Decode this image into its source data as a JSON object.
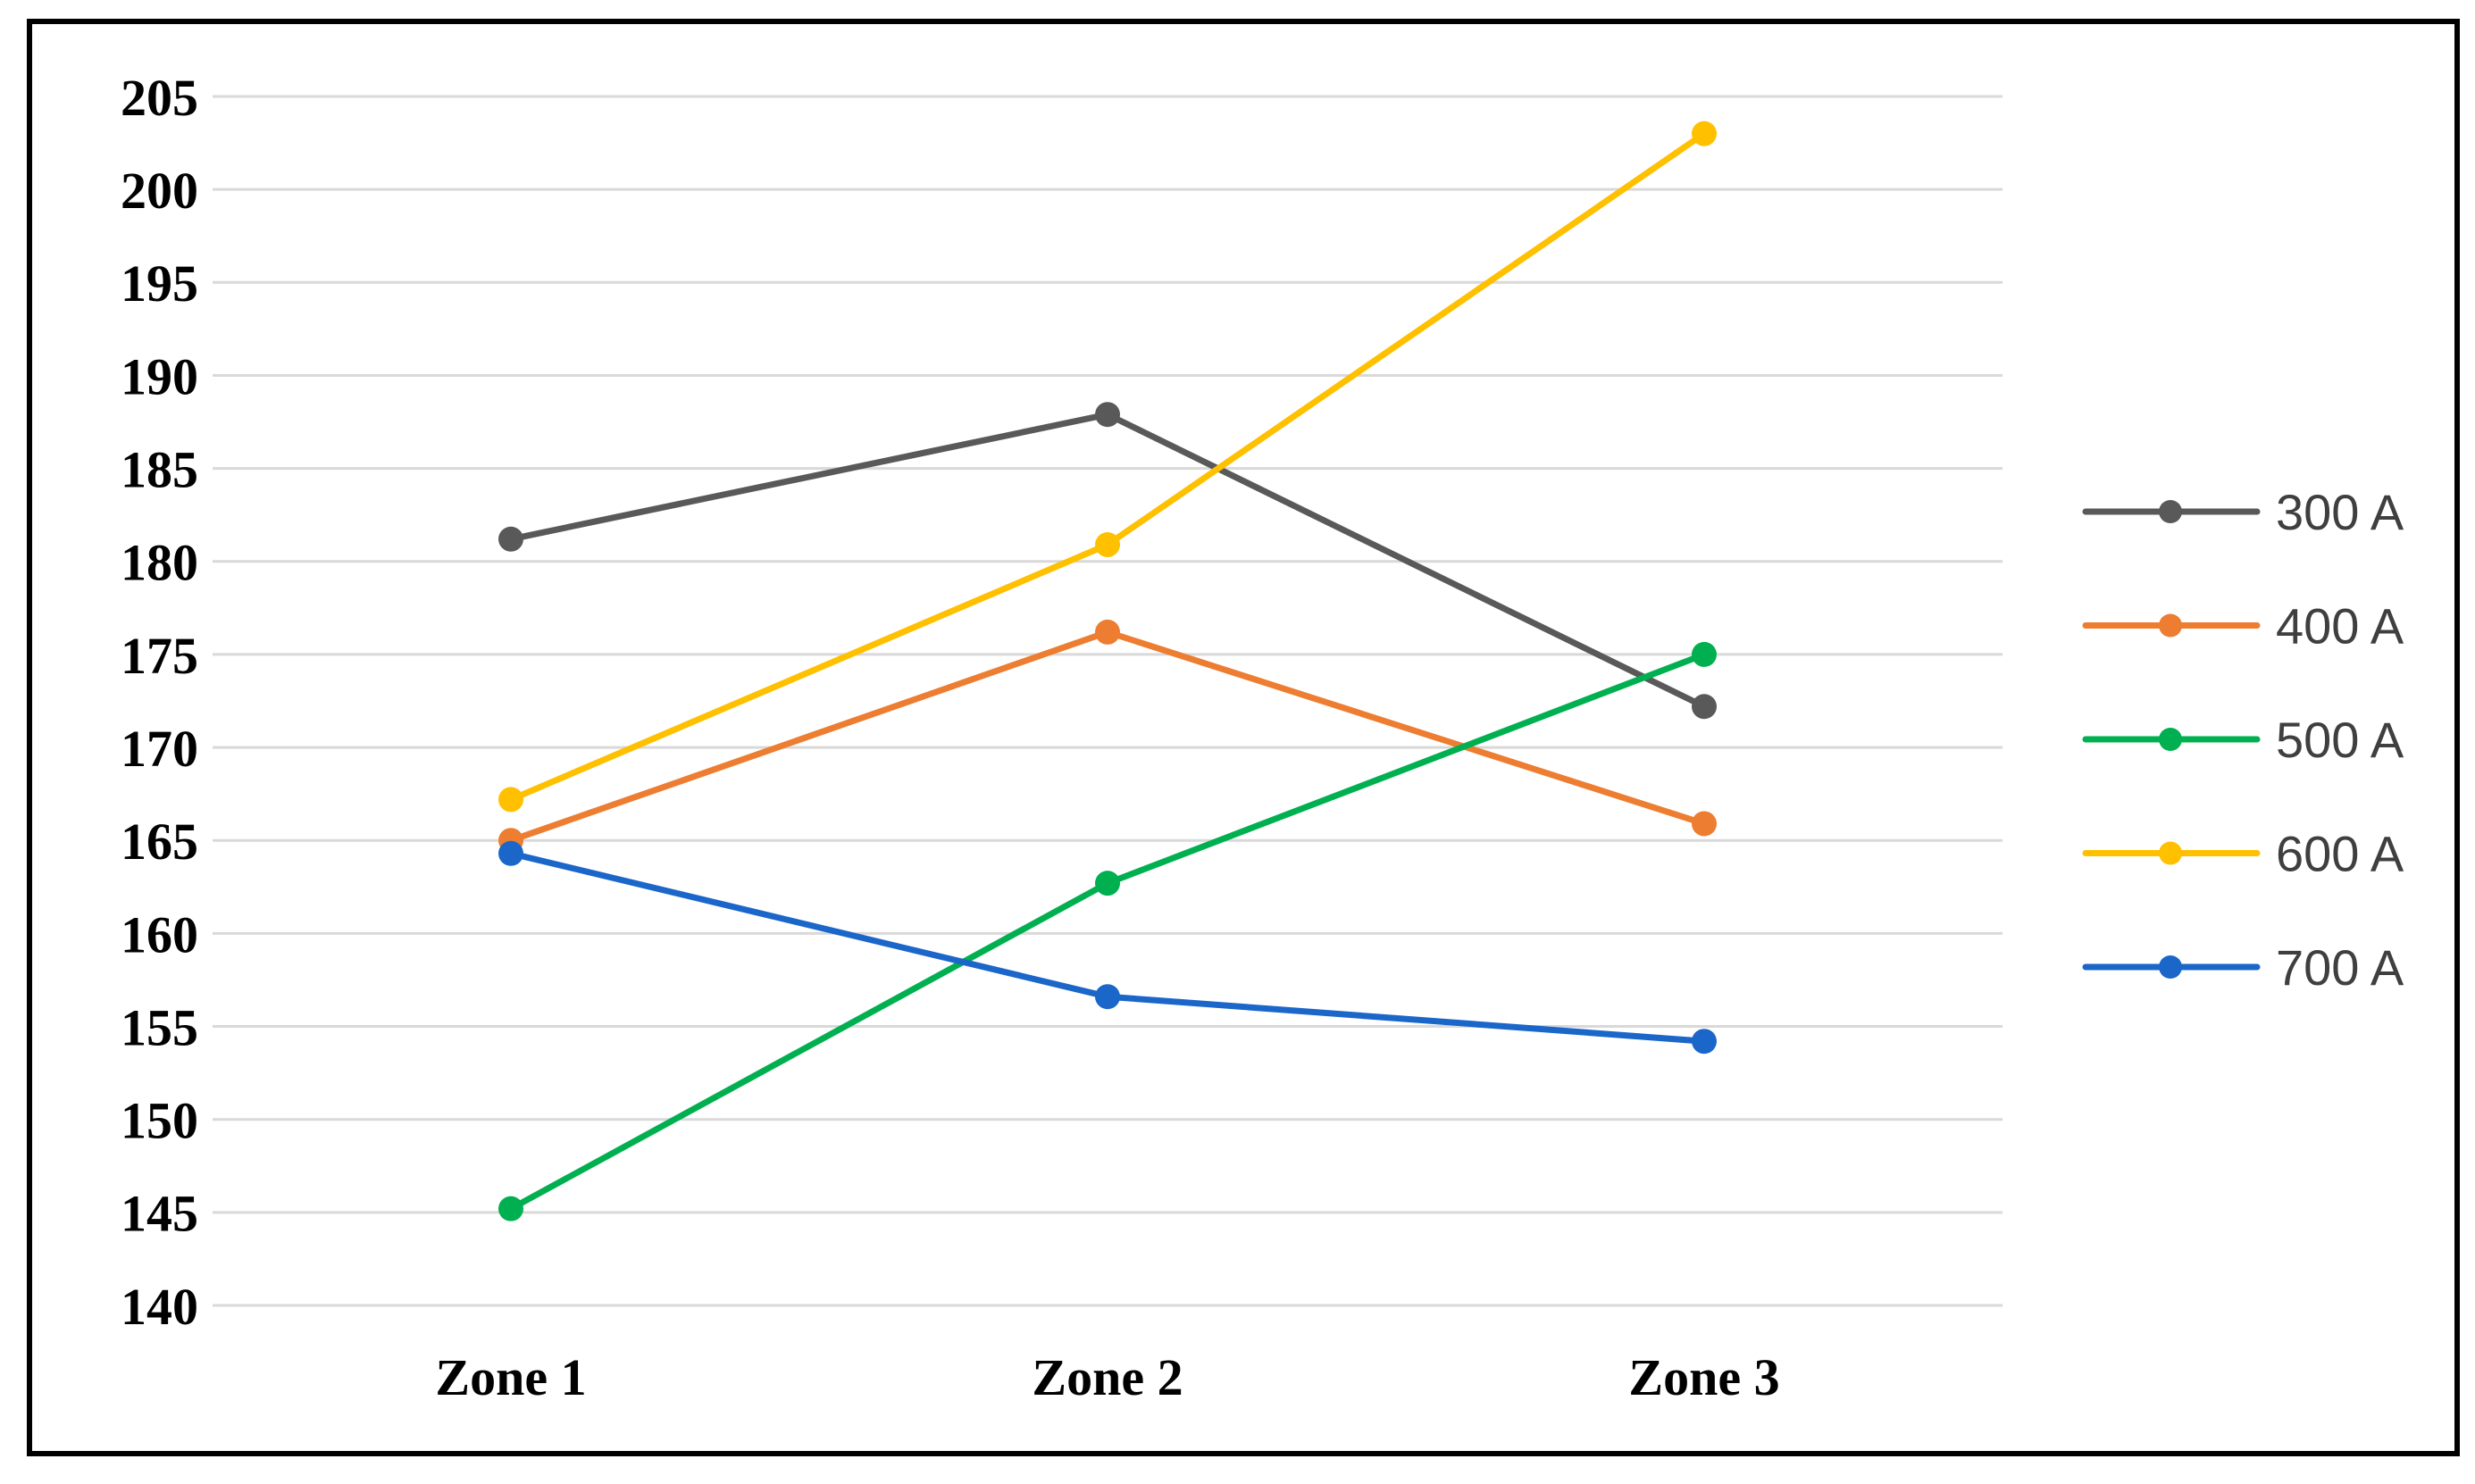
{
  "figure": {
    "background": "#FFFFFF",
    "border_color": "#000000",
    "gridline_color": "#D9D9D9",
    "axis_label_color": "#000000",
    "legend_text_color": "#3F3F3F"
  },
  "chart_data": {
    "type": "line",
    "title": "",
    "xlabel": "",
    "ylabel": "",
    "categories": [
      "Zone 1",
      "Zone 2",
      "Zone 3"
    ],
    "series": [
      {
        "name": "300 A",
        "color": "#595959",
        "values": [
          181.2,
          187.9,
          172.2
        ]
      },
      {
        "name": "400 A",
        "color": "#ED7D31",
        "values": [
          165.0,
          176.2,
          165.9
        ]
      },
      {
        "name": "500 A",
        "color": "#00B050",
        "values": [
          145.2,
          162.7,
          175.0
        ]
      },
      {
        "name": "600 A",
        "color": "#FFC000",
        "values": [
          167.2,
          180.9,
          203.0
        ]
      },
      {
        "name": "700 A",
        "color": "#1B66C9",
        "values": [
          164.3,
          156.6,
          154.2
        ]
      }
    ],
    "ylim": [
      140,
      205
    ],
    "ytick_step": 5,
    "ytick_labels": [
      "140",
      "145",
      "150",
      "155",
      "160",
      "165",
      "170",
      "175",
      "180",
      "185",
      "190",
      "195",
      "200",
      "205"
    ],
    "grid": true,
    "legend_position": "right",
    "legend_entries": [
      "300 A",
      "400 A",
      "500 A",
      "600 A",
      "700 A"
    ],
    "marker": "circle"
  }
}
